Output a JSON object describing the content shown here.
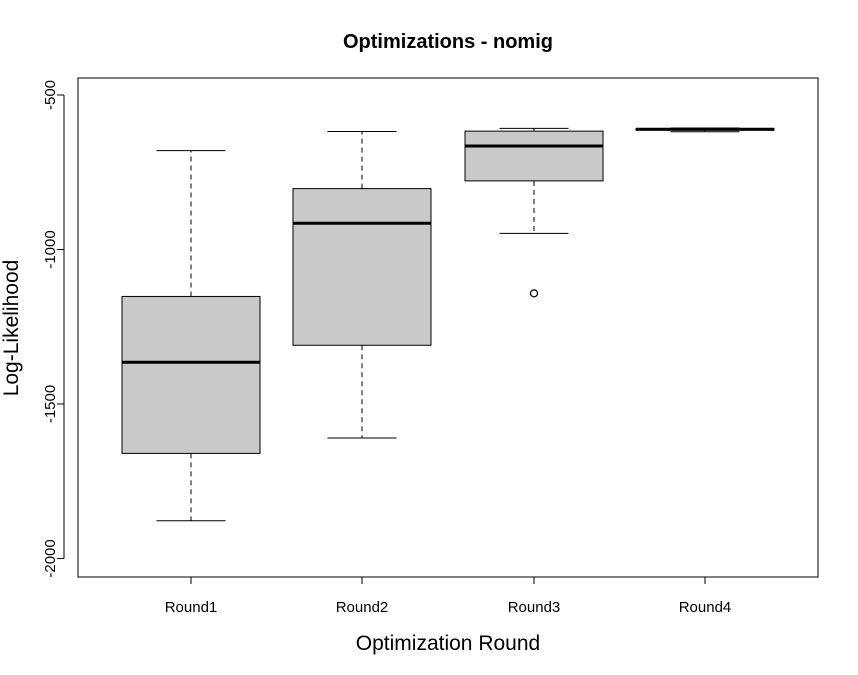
{
  "chart_data": {
    "type": "box",
    "title": "Optimizations - nomig",
    "xlabel": "Optimization Round",
    "ylabel": "Log-Likelihood",
    "ylim": [
      -2060,
      -445
    ],
    "yticks": [
      -500,
      -1000,
      -1500,
      -2000
    ],
    "categories": [
      "Round1",
      "Round2",
      "Round3",
      "Round4"
    ],
    "boxes": [
      {
        "label": "Round1",
        "whisker_low": -1878,
        "q1": -1660,
        "median": -1365,
        "q3": -1152,
        "whisker_high": -680,
        "outliers": []
      },
      {
        "label": "Round2",
        "whisker_low": -1610,
        "q1": -1310,
        "median": -915,
        "q3": -803,
        "whisker_high": -618,
        "outliers": []
      },
      {
        "label": "Round3",
        "whisker_low": -948,
        "q1": -778,
        "median": -665,
        "q3": -617,
        "whisker_high": -608,
        "outliers": [
          -1142
        ]
      },
      {
        "label": "Round4",
        "whisker_low": -619,
        "q1": -614,
        "median": -611,
        "q3": -609,
        "whisker_high": -607,
        "outliers": []
      }
    ],
    "box_fill": "#c9c9c9",
    "line_color": "#000000",
    "grid": false,
    "legend": "none"
  }
}
